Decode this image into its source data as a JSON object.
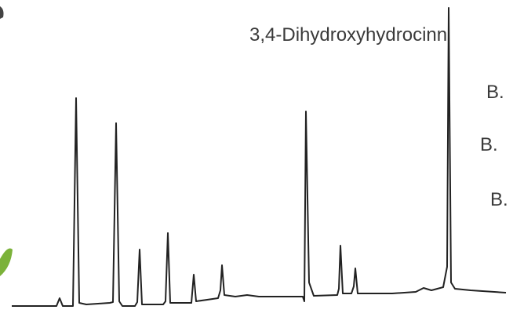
{
  "compound_label": "3,4-Dihydroxyhydrocinn",
  "legend_items": [
    "B.",
    "B.",
    "B."
  ]
}
